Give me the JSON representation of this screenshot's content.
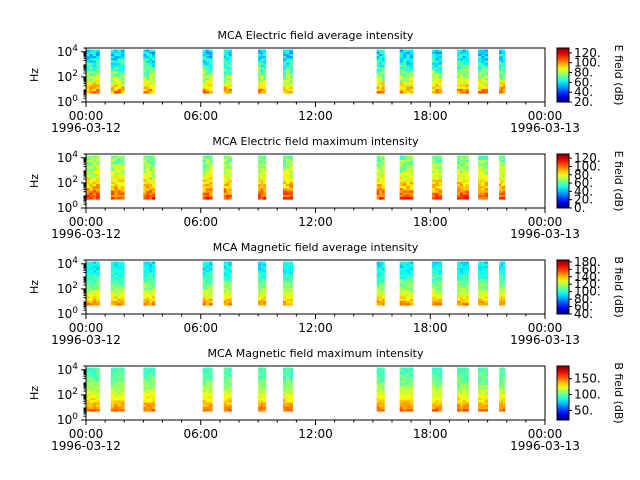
{
  "figure": {
    "background": "#ffffff"
  },
  "chart_data": [
    {
      "type": "heatmap",
      "title": "MCA  Electric field average intensity",
      "xlabel": "",
      "ylabel": "Hz",
      "xlim": [
        "1996-03-12 00:00",
        "1996-03-13 00:00"
      ],
      "ylim": [
        1,
        20000
      ],
      "yscale": "log",
      "y_ticks": [
        "10^0",
        "10^2",
        "10^4"
      ],
      "x_ticks": [
        "00:00",
        "06:00",
        "12:00",
        "18:00",
        "00:00"
      ],
      "x_dates": [
        "1996-03-12",
        "1996-03-13"
      ],
      "colorbar": {
        "label": "E field (dB)",
        "ticks": [
          "20.",
          "40.",
          "60.",
          "80.",
          "100.",
          "120."
        ],
        "range": [
          20,
          130
        ]
      },
      "grid": false,
      "data_intervals_hours": [
        [
          0.0,
          0.7
        ],
        [
          1.3,
          2.0
        ],
        [
          3.0,
          3.6
        ],
        [
          6.1,
          6.6
        ],
        [
          7.2,
          7.6
        ],
        [
          9.0,
          9.4
        ],
        [
          10.3,
          10.8
        ],
        [
          15.2,
          15.6
        ],
        [
          16.4,
          17.1
        ],
        [
          18.1,
          18.6
        ],
        [
          19.4,
          20.0
        ],
        [
          20.5,
          21.0
        ],
        [
          21.6,
          21.9
        ]
      ],
      "intensity_profile": {
        "low_freq_db": 100,
        "high_freq_db": 58,
        "noise_db": 10
      }
    },
    {
      "type": "heatmap",
      "title": "MCA  Electric field maximum intensity",
      "xlabel": "",
      "ylabel": "Hz",
      "xlim": [
        "1996-03-12 00:00",
        "1996-03-13 00:00"
      ],
      "ylim": [
        1,
        20000
      ],
      "yscale": "log",
      "y_ticks": [
        "10^0",
        "10^2",
        "10^4"
      ],
      "x_ticks": [
        "00:00",
        "06:00",
        "12:00",
        "18:00",
        "00:00"
      ],
      "x_dates": [
        "1996-03-12",
        "1996-03-13"
      ],
      "colorbar": {
        "label": "E field (dB)",
        "ticks": [
          "0.",
          "20.",
          "40.",
          "60.",
          "80.",
          "100.",
          "120."
        ],
        "range": [
          0,
          130
        ]
      },
      "grid": false,
      "data_intervals_hours": [
        [
          0.0,
          0.7
        ],
        [
          1.3,
          2.0
        ],
        [
          3.0,
          3.6
        ],
        [
          6.1,
          6.6
        ],
        [
          7.2,
          7.6
        ],
        [
          9.0,
          9.4
        ],
        [
          10.3,
          10.8
        ],
        [
          15.2,
          15.6
        ],
        [
          16.4,
          17.1
        ],
        [
          18.1,
          18.6
        ],
        [
          19.4,
          20.0
        ],
        [
          20.5,
          21.0
        ],
        [
          21.6,
          21.9
        ]
      ],
      "intensity_profile": {
        "low_freq_db": 105,
        "high_freq_db": 65,
        "noise_db": 10
      }
    },
    {
      "type": "heatmap",
      "title": "MCA  Magnetic field average intensity",
      "xlabel": "",
      "ylabel": "Hz",
      "xlim": [
        "1996-03-12 00:00",
        "1996-03-13 00:00"
      ],
      "ylim": [
        1,
        20000
      ],
      "yscale": "log",
      "y_ticks": [
        "10^0",
        "10^2",
        "10^4"
      ],
      "x_ticks": [
        "00:00",
        "06:00",
        "12:00",
        "18:00",
        "00:00"
      ],
      "x_dates": [
        "1996-03-12",
        "1996-03-13"
      ],
      "colorbar": {
        "label": "B field (dB)",
        "ticks": [
          "40.",
          "60.",
          "80.",
          "100.",
          "120.",
          "140.",
          "160.",
          "180."
        ],
        "range": [
          40,
          185
        ]
      },
      "grid": false,
      "data_intervals_hours": [
        [
          0.0,
          0.7
        ],
        [
          1.3,
          2.0
        ],
        [
          3.0,
          3.6
        ],
        [
          6.1,
          6.6
        ],
        [
          7.2,
          7.6
        ],
        [
          9.0,
          9.4
        ],
        [
          10.3,
          10.8
        ],
        [
          15.2,
          15.6
        ],
        [
          16.4,
          17.1
        ],
        [
          18.1,
          18.6
        ],
        [
          19.4,
          20.0
        ],
        [
          20.5,
          21.0
        ],
        [
          21.6,
          21.9
        ]
      ],
      "intensity_profile": {
        "low_freq_db": 145,
        "high_freq_db": 92,
        "noise_db": 8
      }
    },
    {
      "type": "heatmap",
      "title": "MCA  Magnetic field maximum intensity",
      "xlabel": "",
      "ylabel": "Hz",
      "xlim": [
        "1996-03-12 00:00",
        "1996-03-13 00:00"
      ],
      "ylim": [
        1,
        20000
      ],
      "yscale": "log",
      "y_ticks": [
        "10^0",
        "10^2",
        "10^4"
      ],
      "x_ticks": [
        "00:00",
        "06:00",
        "12:00",
        "18:00",
        "00:00"
      ],
      "x_dates": [
        "1996-03-12",
        "1996-03-13"
      ],
      "colorbar": {
        "label": "B field (dB)",
        "ticks": [
          "50.",
          "100.",
          "150."
        ],
        "range": [
          20,
          190
        ]
      },
      "grid": false,
      "data_intervals_hours": [
        [
          0.0,
          0.7
        ],
        [
          1.3,
          2.0
        ],
        [
          3.0,
          3.6
        ],
        [
          6.1,
          6.6
        ],
        [
          7.2,
          7.6
        ],
        [
          9.0,
          9.4
        ],
        [
          10.3,
          10.8
        ],
        [
          15.2,
          15.6
        ],
        [
          16.4,
          17.1
        ],
        [
          18.1,
          18.6
        ],
        [
          19.4,
          20.0
        ],
        [
          20.5,
          21.0
        ],
        [
          21.6,
          21.9
        ]
      ],
      "intensity_profile": {
        "low_freq_db": 150,
        "high_freq_db": 95,
        "noise_db": 8
      }
    }
  ]
}
